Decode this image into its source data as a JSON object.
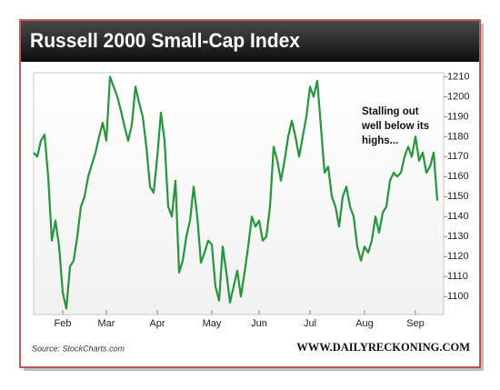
{
  "chart_data": {
    "type": "line",
    "title": "Russell 2000 Small-Cap Index",
    "annotation": [
      "Stalling out",
      "well below its",
      "highs..."
    ],
    "source": "Source: StockCharts.com",
    "credit": "WWW.DAILYRECKONING.COM",
    "color": "#23973a",
    "grid": false,
    "categories": [
      null,
      null,
      null,
      null,
      null,
      null,
      null,
      null,
      "Feb",
      null,
      null,
      null,
      null,
      null,
      null,
      null,
      null,
      null,
      null,
      null,
      "Mar",
      null,
      null,
      null,
      null,
      null,
      null,
      null,
      null,
      null,
      null,
      null,
      null,
      null,
      "Apr",
      null,
      null,
      null,
      null,
      null,
      null,
      null,
      null,
      null,
      null,
      null,
      null,
      null,
      null,
      "May",
      null,
      null,
      null,
      null,
      null,
      null,
      null,
      null,
      null,
      null,
      null,
      null,
      "Jun",
      null,
      null,
      null,
      null,
      null,
      null,
      null,
      null,
      null,
      null,
      null,
      null,
      null,
      "Jul",
      null,
      null,
      null,
      null,
      null,
      null,
      null,
      null,
      null,
      null,
      null,
      null,
      null,
      null,
      "Aug",
      null,
      null,
      null,
      null,
      null,
      null,
      null,
      null,
      null,
      null,
      null,
      null,
      null,
      "Sep",
      null,
      null,
      null,
      null,
      null,
      null
    ],
    "values": [
      1172,
      1170,
      1178,
      1181,
      1160,
      1128,
      1138,
      1125,
      1102,
      1094,
      1115,
      1118,
      1130,
      1145,
      1150,
      1160,
      1166,
      1172,
      1180,
      1187,
      1178,
      1210,
      1205,
      1200,
      1193,
      1185,
      1178,
      1186,
      1205,
      1197,
      1190,
      1175,
      1155,
      1152,
      1170,
      1192,
      1178,
      1145,
      1140,
      1158,
      1112,
      1118,
      1130,
      1138,
      1155,
      1140,
      1117,
      1122,
      1128,
      1126,
      1105,
      1098,
      1125,
      1112,
      1097,
      1105,
      1113,
      1100,
      1112,
      1125,
      1140,
      1135,
      1138,
      1128,
      1130,
      1145,
      1175,
      1168,
      1158,
      1168,
      1180,
      1188,
      1180,
      1170,
      1180,
      1190,
      1205,
      1200,
      1208,
      1185,
      1162,
      1165,
      1150,
      1145,
      1135,
      1150,
      1155,
      1145,
      1140,
      1125,
      1118,
      1125,
      1122,
      1128,
      1140,
      1132,
      1142,
      1145,
      1158,
      1162,
      1160,
      1162,
      1170,
      1175,
      1170,
      1180,
      1168,
      1172,
      1162,
      1165,
      1172,
      1148
    ],
    "ylim": [
      1091,
      1212
    ],
    "yticks": [
      1100,
      1110,
      1120,
      1130,
      1140,
      1150,
      1160,
      1170,
      1180,
      1190,
      1200,
      1210
    ]
  }
}
